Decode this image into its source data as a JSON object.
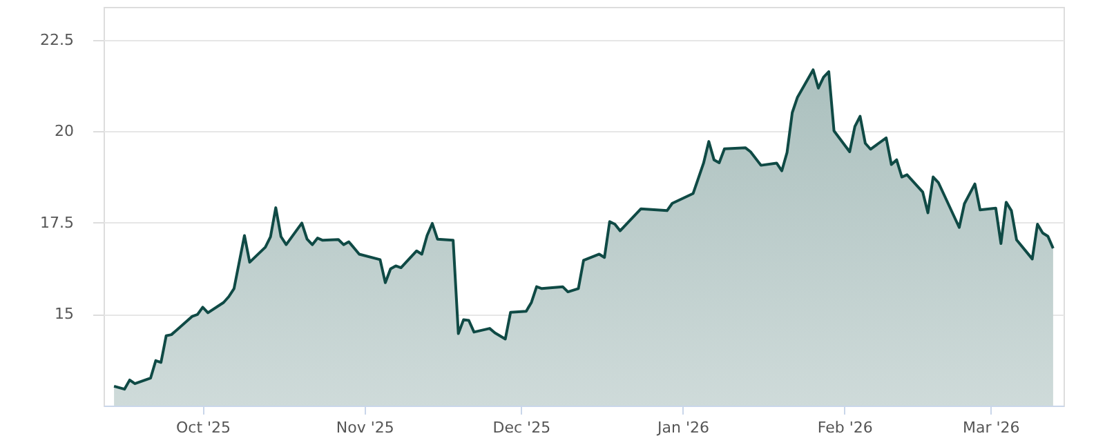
{
  "chart_data": {
    "type": "area",
    "xlim": [
      "2025-09-12",
      "2026-03-15"
    ],
    "ylim": [
      12.5,
      23.4
    ],
    "yticks": [
      15,
      17.5,
      20,
      22.5
    ],
    "xticks": [
      {
        "value": "2025-10-01",
        "label": "Oct '25"
      },
      {
        "value": "2025-11-01",
        "label": "Nov '25"
      },
      {
        "value": "2025-12-01",
        "label": "Dec '25"
      },
      {
        "value": "2026-01-01",
        "label": "Jan '26"
      },
      {
        "value": "2026-02-01",
        "label": "Feb '26"
      },
      {
        "value": "2026-03-01",
        "label": "Mar '26"
      }
    ],
    "grid": "y",
    "marker": "none",
    "line_style": "solid",
    "x": [
      "2025-09-14",
      "2025-09-16",
      "2025-09-17",
      "2025-09-18",
      "2025-09-21",
      "2025-09-22",
      "2025-09-23",
      "2025-09-24",
      "2025-09-25",
      "2025-09-29",
      "2025-09-30",
      "2025-10-01",
      "2025-10-02",
      "2025-10-05",
      "2025-10-06",
      "2025-10-07",
      "2025-10-09",
      "2025-10-10",
      "2025-10-13",
      "2025-10-14",
      "2025-10-15",
      "2025-10-16",
      "2025-10-17",
      "2025-10-20",
      "2025-10-21",
      "2025-10-22",
      "2025-10-23",
      "2025-10-24",
      "2025-10-27",
      "2025-10-28",
      "2025-10-29",
      "2025-10-31",
      "2025-11-04",
      "2025-11-05",
      "2025-11-06",
      "2025-11-07",
      "2025-11-08",
      "2025-11-11",
      "2025-11-12",
      "2025-11-13",
      "2025-11-14",
      "2025-11-15",
      "2025-11-18",
      "2025-11-19",
      "2025-11-20",
      "2025-11-21",
      "2025-11-22",
      "2025-11-25",
      "2025-11-26",
      "2025-11-28",
      "2025-11-29",
      "2025-12-02",
      "2025-12-03",
      "2025-12-04",
      "2025-12-05",
      "2025-12-09",
      "2025-12-10",
      "2025-12-12",
      "2025-12-13",
      "2025-12-16",
      "2025-12-17",
      "2025-12-18",
      "2025-12-19",
      "2025-12-20",
      "2025-12-24",
      "2025-12-29",
      "2025-12-30",
      "2026-01-03",
      "2026-01-05",
      "2026-01-06",
      "2026-01-07",
      "2026-01-08",
      "2026-01-09",
      "2026-01-13",
      "2026-01-14",
      "2026-01-16",
      "2026-01-19",
      "2026-01-20",
      "2026-01-21",
      "2026-01-22",
      "2026-01-23",
      "2026-01-26",
      "2026-01-27",
      "2026-01-28",
      "2026-01-29",
      "2026-01-30",
      "2026-02-02",
      "2026-02-03",
      "2026-02-04",
      "2026-02-05",
      "2026-02-06",
      "2026-02-09",
      "2026-02-10",
      "2026-02-11",
      "2026-02-12",
      "2026-02-13",
      "2026-02-16",
      "2026-02-17",
      "2026-02-18",
      "2026-02-19",
      "2026-02-23",
      "2026-02-24",
      "2026-02-26",
      "2026-02-27",
      "2026-03-02",
      "2026-03-03",
      "2026-03-04",
      "2026-03-05",
      "2026-03-06",
      "2026-03-09",
      "2026-03-10",
      "2026-03-11",
      "2026-03-12",
      "2026-03-13"
    ],
    "series": [
      {
        "color": "#0f4a45",
        "values": [
          13.03,
          12.95,
          13.2,
          13.1,
          13.25,
          13.73,
          13.68,
          14.41,
          14.44,
          14.94,
          14.99,
          15.19,
          15.04,
          15.32,
          15.48,
          15.7,
          17.15,
          16.42,
          16.83,
          17.12,
          17.91,
          17.12,
          16.9,
          17.49,
          17.05,
          16.9,
          17.08,
          17.02,
          17.04,
          16.9,
          16.98,
          16.64,
          16.49,
          15.86,
          16.24,
          16.32,
          16.27,
          16.73,
          16.64,
          17.15,
          17.48,
          17.05,
          17.02,
          14.47,
          14.85,
          14.83,
          14.51,
          14.61,
          14.49,
          14.32,
          15.05,
          15.08,
          15.32,
          15.75,
          15.7,
          15.75,
          15.61,
          15.7,
          16.47,
          16.64,
          16.55,
          17.53,
          17.46,
          17.28,
          17.88,
          17.83,
          18.03,
          18.3,
          19.13,
          19.72,
          19.22,
          19.14,
          19.52,
          19.55,
          19.44,
          19.07,
          19.13,
          18.92,
          19.42,
          20.51,
          20.93,
          21.68,
          21.18,
          21.48,
          21.63,
          20.01,
          19.44,
          20.13,
          20.41,
          19.67,
          19.51,
          19.82,
          19.09,
          19.22,
          18.75,
          18.81,
          18.34,
          17.77,
          18.75,
          18.6,
          17.37,
          18.02,
          18.56,
          17.85,
          17.9,
          16.93,
          18.06,
          17.83,
          17.03,
          16.51,
          17.46,
          17.22,
          17.13,
          16.8
        ]
      }
    ]
  }
}
